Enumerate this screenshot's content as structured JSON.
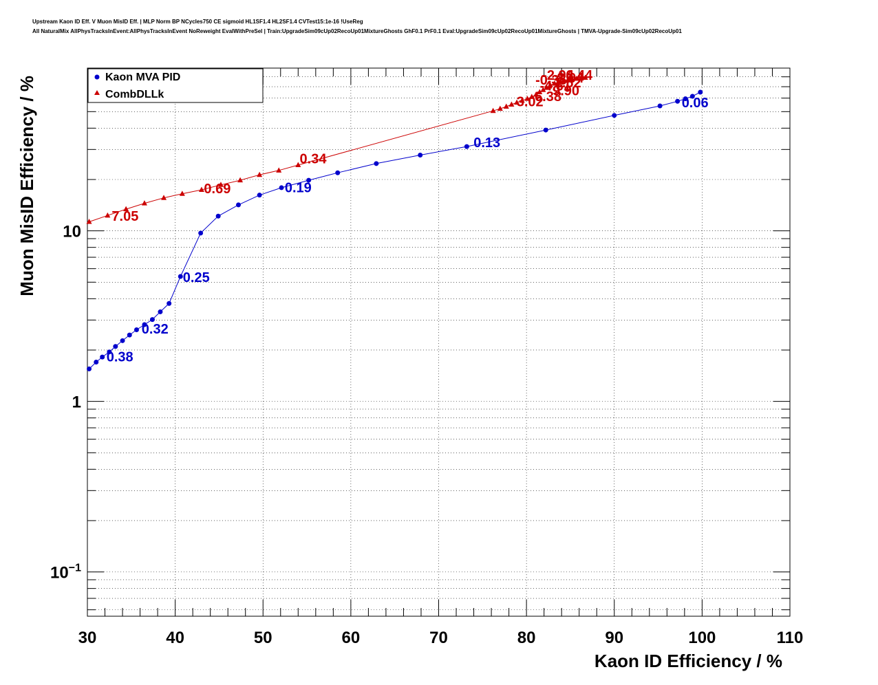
{
  "title": {
    "line1": "Upstream Kaon ID Eff. V Muon MisID Eff. | MLP Norm BP NCycles750 CE sigmoid HL1SF1.4 HL2SF1.4 CVTest15:1e-16 !UseReg",
    "line2": "All NaturalMix AllPhysTracksInEvent:AllPhysTracksInEvent NoReweight EvalWithPreSel | Train:UpgradeSim09cUp02RecoUp01MixtureGhosts GhF0.1 PrF0.1 Eval:UpgradeSim09cUp02RecoUp01MixtureGhosts | TMVA-Upgrade-Sim09cUp02RecoUp01"
  },
  "chart_data": {
    "type": "line",
    "xlabel": "Kaon ID Efficiency / %",
    "ylabel": "Muon MisID Efficiency / %",
    "xlim": [
      30,
      110
    ],
    "ylim": [
      0.055,
      90
    ],
    "yscale": "log",
    "grid": true,
    "legend_position": "top-left",
    "x_ticks": [
      "30",
      "40",
      "50",
      "60",
      "70",
      "80",
      "90",
      "100",
      "110"
    ],
    "y_ticks": [
      {
        "value": 0.1,
        "base": "10",
        "exp": "−1"
      },
      {
        "value": 1,
        "base": "1",
        "exp": ""
      },
      {
        "value": 10,
        "base": "10",
        "exp": ""
      }
    ],
    "series": [
      {
        "name": "Kaon MVA PID",
        "color": "#0000cc",
        "marker": "circle",
        "points": [
          [
            30.2,
            1.55
          ],
          [
            31.0,
            1.7
          ],
          [
            31.7,
            1.82
          ],
          [
            32.5,
            1.95
          ],
          [
            33.2,
            2.1
          ],
          [
            34.0,
            2.27
          ],
          [
            34.8,
            2.45
          ],
          [
            35.6,
            2.63
          ],
          [
            36.5,
            2.82
          ],
          [
            37.4,
            3.02
          ],
          [
            38.3,
            3.35
          ],
          [
            39.3,
            3.75
          ],
          [
            40.6,
            5.4
          ],
          [
            42.9,
            9.7
          ],
          [
            44.9,
            12.2
          ],
          [
            47.2,
            14.2
          ],
          [
            49.6,
            16.2
          ],
          [
            52.1,
            17.9
          ],
          [
            55.2,
            19.8
          ],
          [
            58.5,
            21.9
          ],
          [
            62.9,
            24.8
          ],
          [
            67.9,
            27.8
          ],
          [
            73.2,
            31.2
          ],
          [
            82.2,
            39.0
          ],
          [
            90.0,
            47.5
          ],
          [
            95.2,
            54.0
          ],
          [
            97.2,
            57.5
          ],
          [
            98.1,
            59.5
          ],
          [
            98.9,
            61.5
          ],
          [
            99.8,
            65.0
          ]
        ]
      },
      {
        "name": "CombDLLk",
        "color": "#cc0000",
        "marker": "triangle",
        "points": [
          [
            30.2,
            11.3
          ],
          [
            32.3,
            12.3
          ],
          [
            34.4,
            13.4
          ],
          [
            36.5,
            14.5
          ],
          [
            38.7,
            15.6
          ],
          [
            40.8,
            16.5
          ],
          [
            43.0,
            17.4
          ],
          [
            45.2,
            18.6
          ],
          [
            47.4,
            19.8
          ],
          [
            49.6,
            21.3
          ],
          [
            51.8,
            22.6
          ],
          [
            54.0,
            24.3
          ],
          [
            76.2,
            50.5
          ],
          [
            77.0,
            52.0
          ],
          [
            77.7,
            53.5
          ],
          [
            78.3,
            55.0
          ],
          [
            78.9,
            56.5
          ],
          [
            79.5,
            58.0
          ],
          [
            80.1,
            59.5
          ],
          [
            80.6,
            61.0
          ],
          [
            81.1,
            63.0
          ],
          [
            81.5,
            65.0
          ],
          [
            81.9,
            67.0
          ],
          [
            82.3,
            69.0
          ],
          [
            82.7,
            71.5
          ],
          [
            83.2,
            73.0
          ],
          [
            83.7,
            74.5
          ],
          [
            84.2,
            75.5
          ],
          [
            84.7,
            76.5
          ],
          [
            85.2,
            77.5
          ],
          [
            85.7,
            78.0
          ],
          [
            86.2,
            78.5
          ],
          [
            86.7,
            79.0
          ]
        ]
      }
    ],
    "annotations": [
      {
        "text": "0.06",
        "x": 99.2,
        "y": 56.5,
        "series": "Kaon MVA PID"
      },
      {
        "text": "0.13",
        "x": 75.5,
        "y": 33.0,
        "series": "Kaon MVA PID"
      },
      {
        "text": "0.19",
        "x": 54.0,
        "y": 18.0,
        "series": "Kaon MVA PID"
      },
      {
        "text": "0.25",
        "x": 42.4,
        "y": 5.35,
        "series": "Kaon MVA PID"
      },
      {
        "text": "0.32",
        "x": 37.7,
        "y": 2.67,
        "series": "Kaon MVA PID"
      },
      {
        "text": "0.38",
        "x": 33.7,
        "y": 1.83,
        "series": "Kaon MVA PID"
      },
      {
        "text": "7.05",
        "x": 34.3,
        "y": 12.2,
        "series": "CombDLLk"
      },
      {
        "text": "0.69",
        "x": 44.8,
        "y": 17.7,
        "series": "CombDLLk"
      },
      {
        "text": "0.34",
        "x": 55.7,
        "y": 26.5,
        "series": "CombDLLk"
      },
      {
        "text": "3.02",
        "x": 80.4,
        "y": 57.5,
        "series": "CombDLLk"
      },
      {
        "text": "-6.38",
        "x": 82.2,
        "y": 61.5,
        "series": "CombDLLk"
      },
      {
        "text": "9.90",
        "x": 84.5,
        "y": 66.5,
        "series": "CombDLLk"
      },
      {
        "text": "-4.61",
        "x": 83.3,
        "y": 71.0,
        "series": "CombDLLk"
      },
      {
        "text": "1.52",
        "x": 84.7,
        "y": 74.0,
        "series": "CombDLLk"
      },
      {
        "text": "-0.36",
        "x": 82.8,
        "y": 77.0,
        "series": "CombDLLk"
      },
      {
        "text": "8.04",
        "x": 85.0,
        "y": 79.0,
        "series": "CombDLLk"
      },
      {
        "text": "-2.94",
        "x": 83.6,
        "y": 82.0,
        "series": "CombDLLk"
      },
      {
        "text": "6.44",
        "x": 86.0,
        "y": 82.0,
        "series": "CombDLLk"
      }
    ]
  }
}
